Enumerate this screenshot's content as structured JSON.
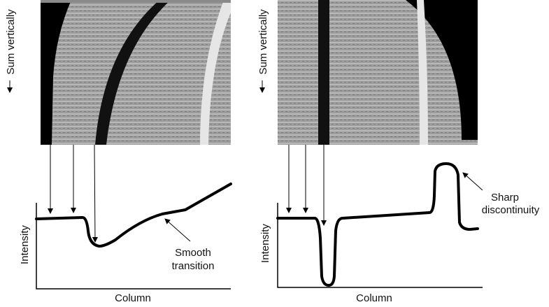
{
  "panels": [
    {
      "vertical_label": "Sum vertically",
      "y_label": "Intensity",
      "x_label": "Column",
      "annotation": [
        "Smooth",
        "transition"
      ]
    },
    {
      "vertical_label": "Sum vertically",
      "y_label": "Intensity",
      "x_label": "Column",
      "annotation": [
        "Sharp",
        "discontinuity"
      ]
    }
  ]
}
